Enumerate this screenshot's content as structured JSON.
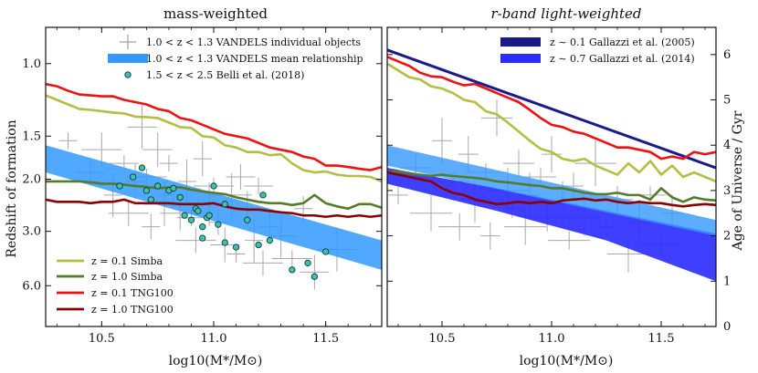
{
  "chart_data": [
    {
      "type": "line",
      "title": "mass-weighted",
      "xlabel": "log10(M*/M⊙)",
      "ylabel": "Redshift of formation",
      "xlim": [
        10.25,
        11.75
      ],
      "age_range_gyr": [
        0,
        6.6
      ],
      "xticks": [
        10.5,
        11.0,
        11.5
      ],
      "xtick_labels": [
        "10.5",
        "11.0",
        "11.5"
      ],
      "ytick_labels": [
        {
          "label": "1.0",
          "age": 5.8
        },
        {
          "label": "1.5",
          "age": 4.2
        },
        {
          "label": "2.0",
          "age": 3.25
        },
        {
          "label": "3.0",
          "age": 2.1
        },
        {
          "label": "6.0",
          "age": 0.9
        }
      ],
      "legend_upper": [
        {
          "label": "1.0 < z < 1.3 VANDELS individual objects",
          "kind": "cross",
          "color": "#a0a0a0"
        },
        {
          "label": "1.0 < z < 1.3 VANDELS mean relationship",
          "kind": "band",
          "color": "#3399ff"
        },
        {
          "label": "1.5 < z < 2.5 Belli et al. (2018)",
          "kind": "marker",
          "color": "#40c0b0"
        }
      ],
      "legend_lower": [
        {
          "label": "z = 0.1  Simba",
          "color": "#b5bd42"
        },
        {
          "label": "z = 1.0  Simba",
          "color": "#557a2a"
        },
        {
          "label": "z = 0.1  TNG100",
          "color": "#ee1111"
        },
        {
          "label": "z = 1.0  TNG100",
          "color": "#8b0000"
        }
      ],
      "series": [
        {
          "name": "z = 0.1 Simba",
          "color": "#b5bd42",
          "x": [
            10.25,
            10.3,
            10.35,
            10.4,
            10.45,
            10.5,
            10.55,
            10.6,
            10.65,
            10.7,
            10.75,
            10.8,
            10.85,
            10.9,
            10.95,
            11.0,
            11.05,
            11.1,
            11.15,
            11.2,
            11.25,
            11.3,
            11.35,
            11.4,
            11.45,
            11.5,
            11.55,
            11.6,
            11.65,
            11.7,
            11.75
          ],
          "age": [
            5.1,
            5.0,
            4.9,
            4.8,
            4.78,
            4.75,
            4.72,
            4.7,
            4.63,
            4.62,
            4.6,
            4.5,
            4.4,
            4.38,
            4.2,
            4.17,
            4.0,
            3.95,
            3.85,
            3.85,
            3.78,
            3.8,
            3.6,
            3.45,
            3.4,
            3.42,
            3.35,
            3.32,
            3.32,
            3.3,
            3.2
          ]
        },
        {
          "name": "z = 1.0 Simba",
          "color": "#557a2a",
          "x": [
            10.25,
            10.3,
            10.35,
            10.4,
            10.45,
            10.5,
            10.55,
            10.6,
            10.65,
            10.7,
            10.75,
            10.8,
            10.85,
            10.9,
            10.95,
            11.0,
            11.05,
            11.1,
            11.15,
            11.2,
            11.25,
            11.3,
            11.35,
            11.4,
            11.45,
            11.5,
            11.55,
            11.6,
            11.65,
            11.7,
            11.75
          ],
          "age": [
            3.2,
            3.2,
            3.2,
            3.2,
            3.18,
            3.15,
            3.15,
            3.13,
            3.1,
            3.08,
            3.05,
            3.07,
            3.07,
            3.02,
            2.98,
            2.95,
            2.92,
            2.85,
            2.8,
            2.75,
            2.72,
            2.72,
            2.68,
            2.72,
            2.9,
            2.72,
            2.65,
            2.6,
            2.7,
            2.7,
            2.62
          ]
        },
        {
          "name": "z = 0.1 TNG100",
          "color": "#ee1111",
          "x": [
            10.25,
            10.3,
            10.35,
            10.4,
            10.45,
            10.5,
            10.55,
            10.6,
            10.65,
            10.7,
            10.75,
            10.8,
            10.85,
            10.9,
            10.95,
            11.0,
            11.05,
            11.1,
            11.15,
            11.2,
            11.25,
            11.3,
            11.35,
            11.4,
            11.45,
            11.5,
            11.55,
            11.6,
            11.65,
            11.7,
            11.75
          ],
          "age": [
            5.35,
            5.3,
            5.2,
            5.12,
            5.1,
            5.08,
            5.08,
            5.0,
            4.95,
            4.9,
            4.8,
            4.75,
            4.6,
            4.55,
            4.45,
            4.35,
            4.25,
            4.2,
            4.15,
            4.05,
            3.95,
            3.9,
            3.85,
            3.75,
            3.7,
            3.55,
            3.55,
            3.52,
            3.48,
            3.45,
            3.52
          ]
        },
        {
          "name": "z = 1.0 TNG100",
          "color": "#8b0000",
          "x": [
            10.25,
            10.3,
            10.35,
            10.4,
            10.45,
            10.5,
            10.55,
            10.6,
            10.65,
            10.7,
            10.75,
            10.8,
            10.85,
            10.9,
            10.95,
            11.0,
            11.05,
            11.1,
            11.15,
            11.2,
            11.25,
            11.3,
            11.35,
            11.4,
            11.45,
            11.5,
            11.55,
            11.6,
            11.65,
            11.7,
            11.75
          ],
          "age": [
            2.8,
            2.75,
            2.75,
            2.75,
            2.72,
            2.75,
            2.75,
            2.8,
            2.72,
            2.72,
            2.72,
            2.72,
            2.7,
            2.7,
            2.7,
            2.72,
            2.65,
            2.6,
            2.58,
            2.58,
            2.55,
            2.52,
            2.5,
            2.45,
            2.45,
            2.42,
            2.45,
            2.42,
            2.45,
            2.42,
            2.45
          ]
        }
      ],
      "bands": [
        {
          "name": "1.0 < z < 1.3 VANDELS mean relationship",
          "color": "#3399ff",
          "x": [
            10.25,
            11.75
          ],
          "upper_age": [
            4.0,
            1.9
          ],
          "lower_age": [
            3.4,
            1.25
          ]
        }
      ],
      "belli_points": {
        "x": [
          10.58,
          10.64,
          10.68,
          10.7,
          10.72,
          10.75,
          10.8,
          10.82,
          10.85,
          10.87,
          10.9,
          10.92,
          10.93,
          10.95,
          10.95,
          10.97,
          10.98,
          11.0,
          11.02,
          11.05,
          11.05,
          11.1,
          11.15,
          11.2,
          11.22,
          11.25,
          11.35,
          11.42,
          11.45,
          11.5
        ],
        "age": [
          3.1,
          3.3,
          3.5,
          3.0,
          2.8,
          3.1,
          3.0,
          3.05,
          2.85,
          2.45,
          2.35,
          2.6,
          2.55,
          2.2,
          1.95,
          2.4,
          2.45,
          3.1,
          2.25,
          1.85,
          2.7,
          1.75,
          2.35,
          1.8,
          2.9,
          1.9,
          1.25,
          1.4,
          1.1,
          1.65
        ]
      },
      "vandels_crosses": {
        "x": [
          10.35,
          10.45,
          10.5,
          10.55,
          10.6,
          10.62,
          10.65,
          10.68,
          10.7,
          10.72,
          10.75,
          10.78,
          10.8,
          10.82,
          10.85,
          10.88,
          10.9,
          10.92,
          10.95,
          10.98,
          11.0,
          11.02,
          11.05,
          11.08,
          11.1,
          11.12,
          11.15,
          11.18,
          11.2,
          11.22,
          11.25,
          11.3,
          11.35,
          11.4,
          11.45,
          11.55
        ],
        "age": [
          4.1,
          3.4,
          3.9,
          2.9,
          3.6,
          2.5,
          3.2,
          4.4,
          3.3,
          2.2,
          3.9,
          2.7,
          3.6,
          2.9,
          2.5,
          3.2,
          2.4,
          1.9,
          3.7,
          2.7,
          3.1,
          2.3,
          1.8,
          2.9,
          1.6,
          3.3,
          2.6,
          1.9,
          3.1,
          1.4,
          2.2,
          2.0,
          1.5,
          2.6,
          1.2,
          1.7
        ]
      }
    },
    {
      "type": "line",
      "title": "r-band light-weighted",
      "xlabel": "log10(M*/M⊙)",
      "ylabel": "Age of Universe / Gyr",
      "xlim": [
        10.25,
        11.75
      ],
      "age_range_gyr": [
        0,
        6.6
      ],
      "xticks": [
        10.5,
        11.0,
        11.5
      ],
      "xtick_labels": [
        "10.5",
        "11.0",
        "11.5"
      ],
      "yticks": [
        0,
        1,
        2,
        3,
        4,
        5,
        6
      ],
      "ytick_labels": [
        "0",
        "1",
        "2",
        "3",
        "4",
        "5",
        "6"
      ],
      "legend": [
        {
          "label": "z ∼ 0.1 Gallazzi et al. (2005)",
          "color": "#1a1a8c"
        },
        {
          "label": "z ∼ 0.7 Gallazzi et al. (2014)",
          "color": "#2a2aff"
        }
      ],
      "series": [
        {
          "name": "z ∼ 0.1 Gallazzi et al. (2005)",
          "color": "#1a1a8c",
          "x": [
            10.25,
            11.75
          ],
          "age": [
            6.1,
            3.5
          ]
        },
        {
          "name": "z = 0.1 Simba",
          "color": "#b5bd42",
          "x": [
            10.25,
            10.3,
            10.35,
            10.4,
            10.45,
            10.5,
            10.55,
            10.6,
            10.65,
            10.7,
            10.75,
            10.8,
            10.85,
            10.9,
            10.95,
            11.0,
            11.05,
            11.1,
            11.15,
            11.2,
            11.25,
            11.3,
            11.35,
            11.4,
            11.45,
            11.5,
            11.55,
            11.6,
            11.65,
            11.7,
            11.75
          ],
          "age": [
            5.8,
            5.65,
            5.5,
            5.45,
            5.3,
            5.25,
            5.15,
            5.0,
            4.95,
            4.75,
            4.68,
            4.5,
            4.3,
            4.1,
            3.92,
            3.85,
            3.7,
            3.65,
            3.7,
            3.55,
            3.45,
            3.35,
            3.6,
            3.4,
            3.65,
            3.35,
            3.55,
            3.3,
            3.4,
            3.3,
            3.2
          ]
        },
        {
          "name": "z = 0.1 TNG100",
          "color": "#ee1111",
          "x": [
            10.25,
            10.3,
            10.35,
            10.4,
            10.45,
            10.5,
            10.55,
            10.6,
            10.65,
            10.7,
            10.75,
            10.8,
            10.85,
            10.9,
            10.95,
            11.0,
            11.05,
            11.1,
            11.15,
            11.2,
            11.25,
            11.3,
            11.35,
            11.4,
            11.45,
            11.5,
            11.55,
            11.6,
            11.65,
            11.7,
            11.75
          ],
          "age": [
            5.95,
            5.85,
            5.75,
            5.6,
            5.52,
            5.5,
            5.4,
            5.32,
            5.35,
            5.25,
            5.15,
            5.05,
            4.95,
            4.78,
            4.6,
            4.45,
            4.4,
            4.3,
            4.25,
            4.15,
            4.05,
            3.95,
            3.95,
            3.9,
            3.85,
            3.7,
            3.75,
            3.7,
            3.85,
            3.8,
            3.85
          ]
        },
        {
          "name": "z = 1.0 Simba",
          "color": "#557a2a",
          "x": [
            10.25,
            10.3,
            10.35,
            10.4,
            10.45,
            10.5,
            10.55,
            10.6,
            10.65,
            10.7,
            10.75,
            10.8,
            10.85,
            10.9,
            10.95,
            11.0,
            11.05,
            11.1,
            11.15,
            11.2,
            11.25,
            11.3,
            11.35,
            11.4,
            11.45,
            11.5,
            11.55,
            11.6,
            11.65,
            11.7,
            11.75
          ],
          "age": [
            3.4,
            3.42,
            3.38,
            3.35,
            3.32,
            3.35,
            3.32,
            3.3,
            3.28,
            3.25,
            3.2,
            3.18,
            3.15,
            3.12,
            3.1,
            3.05,
            3.05,
            3.0,
            2.95,
            2.92,
            2.92,
            2.95,
            2.9,
            2.9,
            2.8,
            3.05,
            2.85,
            2.75,
            2.85,
            2.8,
            2.78
          ]
        },
        {
          "name": "z = 1.0 TNG100",
          "color": "#8b0000",
          "x": [
            10.25,
            10.3,
            10.35,
            10.4,
            10.45,
            10.5,
            10.55,
            10.6,
            10.65,
            10.7,
            10.75,
            10.8,
            10.85,
            10.9,
            10.95,
            11.0,
            11.05,
            11.1,
            11.15,
            11.2,
            11.25,
            11.3,
            11.35,
            11.4,
            11.45,
            11.5,
            11.55,
            11.6,
            11.65,
            11.7,
            11.75
          ],
          "age": [
            3.4,
            3.35,
            3.3,
            3.25,
            3.2,
            3.05,
            2.95,
            2.9,
            2.8,
            2.75,
            2.7,
            2.72,
            2.75,
            2.72,
            2.75,
            2.72,
            2.78,
            2.8,
            2.82,
            2.78,
            2.8,
            2.75,
            2.72,
            2.75,
            2.72,
            2.72,
            2.68,
            2.65,
            2.68,
            2.7,
            2.68
          ]
        }
      ],
      "bands": [
        {
          "name": "z ∼ 0.7 Gallazzi et al. (2014)",
          "color": "#2a2aff",
          "x": [
            10.25,
            10.75,
            11.25,
            11.75
          ],
          "upper_age": [
            3.5,
            3.05,
            2.55,
            2.05
          ],
          "lower_age": [
            3.15,
            2.55,
            1.9,
            1.0
          ]
        },
        {
          "name": "1.0 < z < 1.3 VANDELS mean relationship",
          "color": "#3399ff",
          "x": [
            10.25,
            11.75
          ],
          "upper_age": [
            4.0,
            2.35
          ],
          "lower_age": [
            3.55,
            2.0
          ]
        }
      ],
      "vandels_crosses": {
        "x": [
          10.3,
          10.38,
          10.45,
          10.5,
          10.55,
          10.58,
          10.62,
          10.65,
          10.7,
          10.72,
          10.75,
          10.8,
          10.82,
          10.85,
          10.88,
          10.9,
          10.95,
          10.98,
          11.0,
          11.05,
          11.08,
          11.1,
          11.15,
          11.2,
          11.25,
          11.3,
          11.35,
          11.4,
          11.45,
          11.5,
          11.55
        ],
        "age": [
          2.9,
          3.5,
          2.5,
          4.1,
          3.2,
          2.2,
          3.8,
          2.8,
          3.4,
          2.0,
          4.6,
          3.0,
          2.6,
          3.6,
          2.2,
          2.9,
          3.3,
          2.4,
          3.8,
          2.7,
          1.9,
          3.1,
          2.4,
          3.6,
          2.2,
          2.8,
          1.6,
          2.3,
          2.9,
          1.8,
          2.5
        ]
      }
    }
  ]
}
